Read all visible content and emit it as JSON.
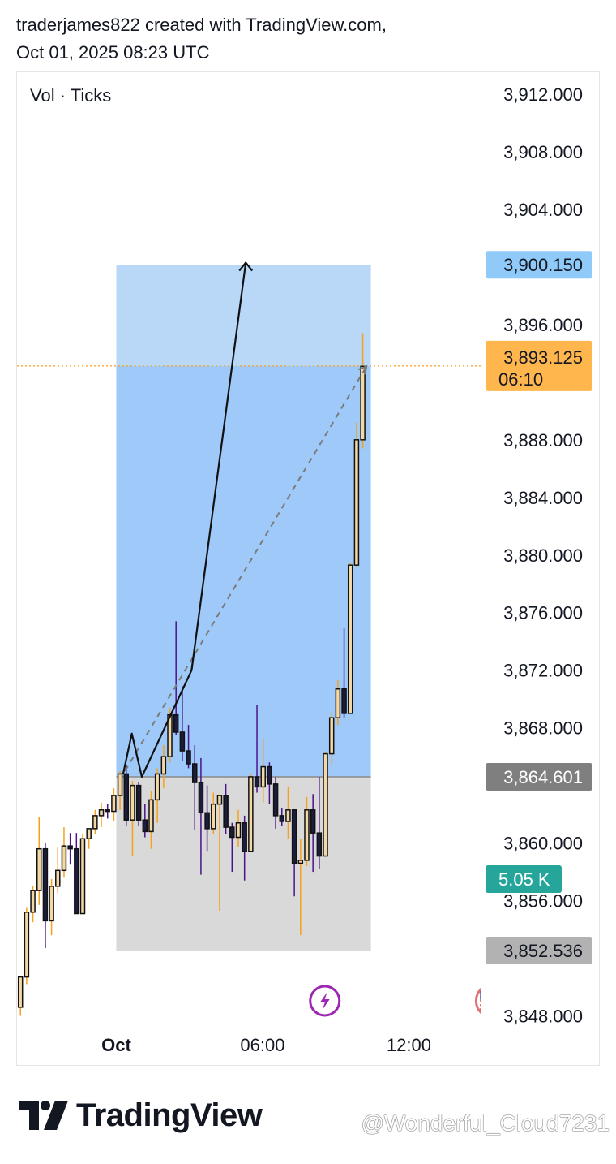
{
  "header": {
    "line1": "traderjames822 created with TradingView.com,",
    "line2": "Oct 01, 2025 08:23 UTC"
  },
  "indicator_label": "Vol · Ticks",
  "branding": {
    "logo_text": "TradingView",
    "watermark": "@Wonderful_Cloud7231"
  },
  "colors": {
    "target_zone": "#b9d8f8",
    "profit_zone": "#9ec9f8",
    "stop_zone": "#d9d9d9",
    "wick_up": "#f7a11a",
    "wick_down": "#4a148c",
    "current_price_tag": "#ffb74d",
    "target_tag": "#90caf9",
    "entry_tag": "#7f7f7f",
    "stop_tag": "#b2b2b2",
    "volume_tag": "#26a69a"
  },
  "icons": [
    "lightning-icon",
    "us-flag-icon",
    "tradingview-logo-icon"
  ],
  "chart_data": {
    "type": "candlestick",
    "price_axis": {
      "min": 3847,
      "max": 3913,
      "ticks": [
        "3,912.000",
        "3,908.000",
        "3,904.000",
        "3,896.000",
        "3,888.000",
        "3,884.000",
        "3,880.000",
        "3,876.000",
        "3,872.000",
        "3,868.000",
        "3,860.000",
        "3,856.000",
        "3,848.000"
      ],
      "tick_values": [
        3912,
        3908,
        3904,
        3896,
        3888,
        3884,
        3880,
        3876,
        3872,
        3868,
        3860,
        3856,
        3848
      ]
    },
    "time_axis": {
      "labels": [
        {
          "text": "Oct",
          "index": 15.4,
          "bold": true
        },
        {
          "text": "06:00",
          "index": 38.9,
          "bold": false
        },
        {
          "text": "12:00",
          "index": 62.4,
          "bold": false
        }
      ]
    },
    "candles": [
      [
        3848.6,
        3850.7,
        3848.0,
        3850.7
      ],
      [
        3850.7,
        3855.2,
        3850.2,
        3855.5
      ],
      [
        3855.2,
        3856.7,
        3854.5,
        3857.0
      ],
      [
        3856.7,
        3859.6,
        3855.7,
        3861.8
      ],
      [
        3859.6,
        3854.6,
        3852.7,
        3860.0
      ],
      [
        3854.6,
        3857.0,
        3853.6,
        3857.5
      ],
      [
        3857.0,
        3858.1,
        3856.5,
        3859.7
      ],
      [
        3858.1,
        3859.8,
        3857.6,
        3861.1
      ],
      [
        3859.8,
        3859.6,
        3858.5,
        3860.7
      ],
      [
        3859.6,
        3855.1,
        3855.1,
        3860.7
      ],
      [
        3855.1,
        3860.3,
        3855.1,
        3860.6
      ],
      [
        3860.3,
        3861.0,
        3859.6,
        3861.0
      ],
      [
        3861.0,
        3861.9,
        3860.6,
        3862.3
      ],
      [
        3861.9,
        3862.3,
        3861.1,
        3862.8
      ],
      [
        3862.3,
        3862.2,
        3861.7,
        3862.7
      ],
      [
        3862.2,
        3863.3,
        3861.5,
        3863.8
      ],
      [
        3863.3,
        3864.8,
        3862.3,
        3865.0
      ],
      [
        3864.8,
        3861.6,
        3861.2,
        3865.4
      ],
      [
        3861.6,
        3864.0,
        3859.1,
        3864.3
      ],
      [
        3864.0,
        3861.6,
        3861.2,
        3864.2
      ],
      [
        3861.6,
        3860.8,
        3860.4,
        3862.7
      ],
      [
        3860.8,
        3863.0,
        3859.6,
        3863.6
      ],
      [
        3863.0,
        3864.8,
        3861.4,
        3865.2
      ],
      [
        3864.8,
        3866.0,
        3863.8,
        3866.8
      ],
      [
        3866.0,
        3868.9,
        3865.6,
        3869.4
      ],
      [
        3868.9,
        3867.7,
        3867.5,
        3875.4
      ],
      [
        3867.7,
        3866.4,
        3865.7,
        3870.9
      ],
      [
        3866.4,
        3865.5,
        3865.2,
        3868.2
      ],
      [
        3865.5,
        3864.2,
        3860.9,
        3866.8
      ],
      [
        3864.2,
        3862.1,
        3857.8,
        3865.9
      ],
      [
        3862.1,
        3861.0,
        3859.4,
        3864.0
      ],
      [
        3861.0,
        3862.7,
        3860.6,
        3863.5
      ],
      [
        3862.7,
        3863.3,
        3855.3,
        3863.3
      ],
      [
        3863.3,
        3861.1,
        3860.6,
        3864.1
      ],
      [
        3861.1,
        3860.4,
        3858.0,
        3861.4
      ],
      [
        3860.4,
        3861.4,
        3859.7,
        3862.3
      ],
      [
        3861.4,
        3859.4,
        3857.4,
        3861.9
      ],
      [
        3859.4,
        3864.6,
        3859.4,
        3864.8
      ],
      [
        3864.6,
        3863.9,
        3863.5,
        3869.6
      ],
      [
        3863.9,
        3865.3,
        3862.8,
        3867.3
      ],
      [
        3865.3,
        3864.1,
        3862.7,
        3865.6
      ],
      [
        3864.1,
        3861.9,
        3861.0,
        3864.6
      ],
      [
        3861.9,
        3861.5,
        3861.2,
        3862.4
      ],
      [
        3861.5,
        3862.3,
        3860.3,
        3863.9
      ],
      [
        3862.3,
        3858.6,
        3856.3,
        3862.3
      ],
      [
        3858.6,
        3858.8,
        3853.6,
        3860.3
      ],
      [
        3858.8,
        3862.3,
        3858.4,
        3863.2
      ],
      [
        3862.3,
        3860.7,
        3858.0,
        3863.4
      ],
      [
        3860.7,
        3859.1,
        3858.2,
        3864.6
      ],
      [
        3859.1,
        3866.2,
        3859.1,
        3866.3
      ],
      [
        3866.2,
        3868.7,
        3865.4,
        3869.0
      ],
      [
        3868.7,
        3870.7,
        3868.2,
        3871.3
      ],
      [
        3870.7,
        3869.0,
        3868.7,
        3874.9
      ],
      [
        3869.0,
        3879.3,
        3869.0,
        3879.5
      ],
      [
        3879.3,
        3888.0,
        3879.2,
        3889.2
      ],
      [
        3888.0,
        3893.1,
        3887.4,
        3895.4
      ]
    ],
    "position": {
      "target": 3900.15,
      "entry": 3864.601,
      "stop": 3852.536,
      "start_index": 15.4,
      "end_index": 56.3
    },
    "forecast_arrow": {
      "points": [
        [
          16.5,
          3864.8
        ],
        [
          17.9,
          3867.6
        ],
        [
          19.5,
          3864.6
        ],
        [
          27.5,
          3872
        ],
        [
          36.2,
          3900.3
        ]
      ]
    },
    "dashed_trend": {
      "from": [
        16.8,
        3865.0
      ],
      "to": [
        55.6,
        3893.1
      ]
    },
    "current_price": {
      "value": 3893.125,
      "label": "3,893.125",
      "countdown": "06:10"
    },
    "tags": {
      "target": "3,900.150",
      "entry": "3,864.601",
      "stop": "3,852.536",
      "volume": "5.05 K",
      "volume_price": 3857.5
    },
    "events": [
      {
        "icon": "lightning-icon",
        "index": 48.9
      },
      {
        "icon": "us-flag-icon",
        "index": 75.8
      }
    ]
  }
}
